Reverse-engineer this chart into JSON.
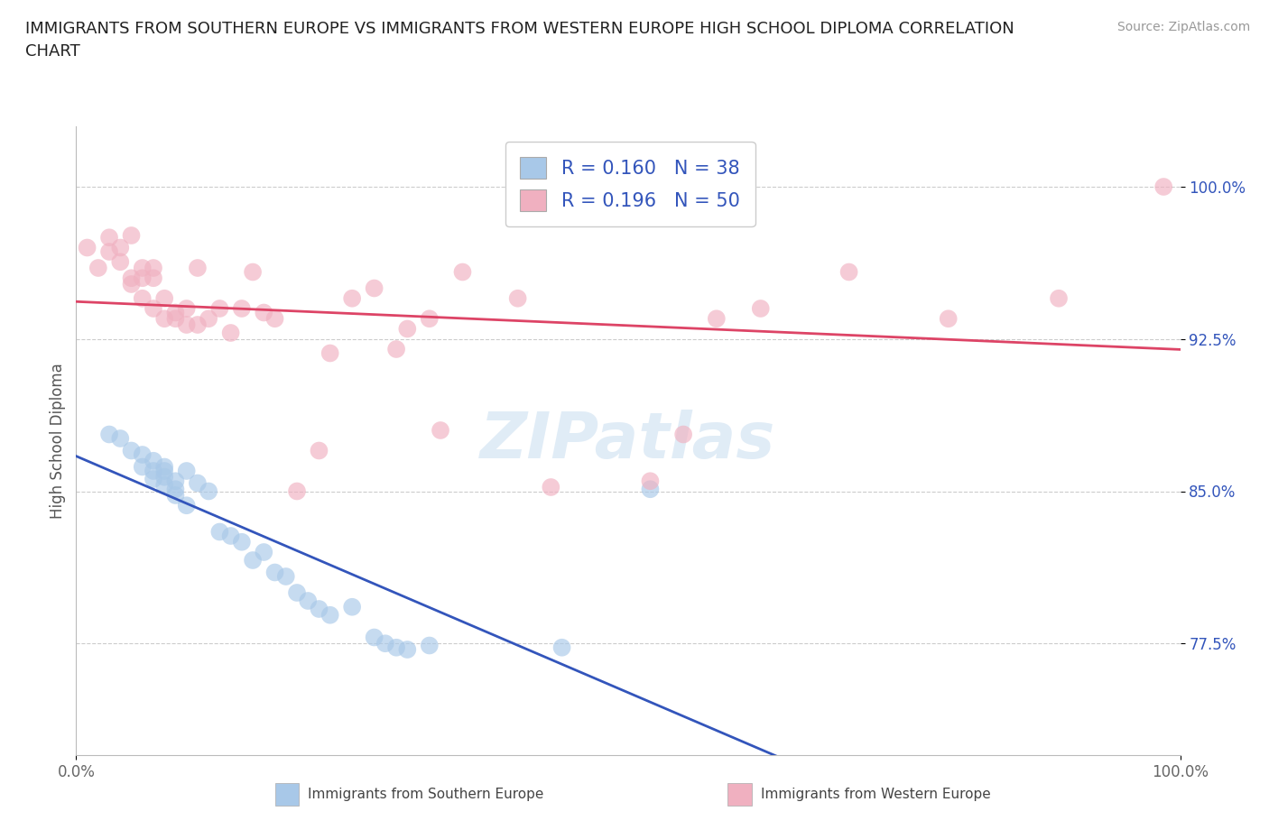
{
  "title": "IMMIGRANTS FROM SOUTHERN EUROPE VS IMMIGRANTS FROM WESTERN EUROPE HIGH SCHOOL DIPLOMA CORRELATION\nCHART",
  "source_text": "Source: ZipAtlas.com",
  "ylabel": "High School Diploma",
  "xlim": [
    0.0,
    1.0
  ],
  "ylim": [
    0.72,
    1.03
  ],
  "xticks": [
    0.0,
    1.0
  ],
  "xticklabels": [
    "0.0%",
    "100.0%"
  ],
  "ytick_positions": [
    0.775,
    0.85,
    0.925,
    1.0
  ],
  "ytick_labels": [
    "77.5%",
    "85.0%",
    "92.5%",
    "100.0%"
  ],
  "blue_color": "#a8c8e8",
  "pink_color": "#f0b0c0",
  "blue_line_color": "#3355bb",
  "pink_line_color": "#dd4466",
  "legend_R_blue": "0.160",
  "legend_N_blue": "38",
  "legend_R_pink": "0.196",
  "legend_N_pink": "50",
  "blue_x": [
    0.03,
    0.04,
    0.05,
    0.06,
    0.06,
    0.07,
    0.07,
    0.07,
    0.08,
    0.08,
    0.08,
    0.08,
    0.09,
    0.09,
    0.09,
    0.1,
    0.1,
    0.11,
    0.12,
    0.13,
    0.14,
    0.15,
    0.16,
    0.17,
    0.18,
    0.19,
    0.2,
    0.21,
    0.22,
    0.23,
    0.25,
    0.27,
    0.28,
    0.29,
    0.3,
    0.32,
    0.44,
    0.52
  ],
  "blue_y": [
    0.878,
    0.876,
    0.87,
    0.868,
    0.862,
    0.865,
    0.86,
    0.856,
    0.862,
    0.86,
    0.857,
    0.853,
    0.855,
    0.851,
    0.848,
    0.86,
    0.843,
    0.854,
    0.85,
    0.83,
    0.828,
    0.825,
    0.816,
    0.82,
    0.81,
    0.808,
    0.8,
    0.796,
    0.792,
    0.789,
    0.793,
    0.778,
    0.775,
    0.773,
    0.772,
    0.774,
    0.773,
    0.851
  ],
  "pink_x": [
    0.01,
    0.02,
    0.03,
    0.03,
    0.04,
    0.04,
    0.05,
    0.05,
    0.05,
    0.06,
    0.06,
    0.06,
    0.07,
    0.07,
    0.07,
    0.08,
    0.08,
    0.09,
    0.09,
    0.1,
    0.1,
    0.11,
    0.11,
    0.12,
    0.13,
    0.14,
    0.15,
    0.16,
    0.17,
    0.18,
    0.2,
    0.22,
    0.23,
    0.25,
    0.27,
    0.29,
    0.3,
    0.32,
    0.33,
    0.35,
    0.4,
    0.43,
    0.52,
    0.55,
    0.58,
    0.62,
    0.7,
    0.79,
    0.89,
    0.985
  ],
  "pink_y": [
    0.97,
    0.96,
    0.968,
    0.975,
    0.97,
    0.963,
    0.976,
    0.955,
    0.952,
    0.96,
    0.955,
    0.945,
    0.96,
    0.955,
    0.94,
    0.945,
    0.935,
    0.938,
    0.935,
    0.94,
    0.932,
    0.96,
    0.932,
    0.935,
    0.94,
    0.928,
    0.94,
    0.958,
    0.938,
    0.935,
    0.85,
    0.87,
    0.918,
    0.945,
    0.95,
    0.92,
    0.93,
    0.935,
    0.88,
    0.958,
    0.945,
    0.852,
    0.855,
    0.878,
    0.935,
    0.94,
    0.958,
    0.935,
    0.945,
    1.0
  ],
  "watermark_text": "ZIPatlas",
  "background_color": "#ffffff",
  "grid_color": "#cccccc",
  "legend_label_blue": "Immigrants from Southern Europe",
  "legend_label_pink": "Immigrants from Western Europe"
}
